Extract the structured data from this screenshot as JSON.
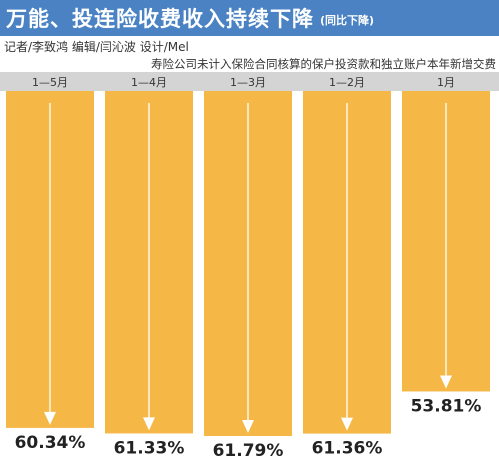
{
  "header": {
    "title": "万能、投连险收费收入持续下降",
    "subtitle": "(同比下降)"
  },
  "credit": "记者/李致鸿  编辑/闫沁波  设计/Mel",
  "note": "寿险公司未计入保险合同核算的保户投资款和独立账户本年新增交费",
  "colors": {
    "banner": "#4a82c3",
    "bar": "#f5b745",
    "header_bar": "#d4d4d4",
    "arrow": "#ffffff"
  },
  "chart_data": {
    "type": "bar",
    "categories": [
      "1—5月",
      "1—4月",
      "1—3月",
      "1—2月",
      "1月"
    ],
    "values": [
      60.34,
      61.33,
      61.79,
      61.36,
      53.81
    ],
    "value_labels": [
      "60.34%",
      "61.33%",
      "61.79%",
      "61.36%",
      "53.81%"
    ],
    "orientation": "vertical-downward",
    "ylim": [
      0,
      61.79
    ],
    "title": "万能、投连险收费收入持续下降",
    "xlabel": "",
    "ylabel": ""
  }
}
